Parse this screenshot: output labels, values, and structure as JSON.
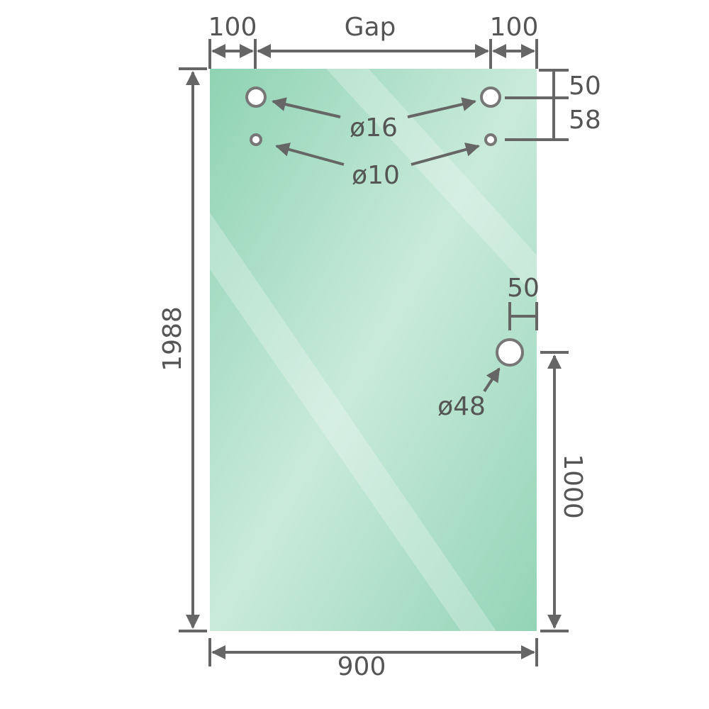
{
  "diagram": {
    "dimensions": {
      "left_offset": "100",
      "gap": "Gap",
      "right_offset": "100",
      "top_to_upper_hole": "50",
      "upper_to_lower_hole": "58",
      "height": "1988",
      "width": "900",
      "knob_edge_offset": "50",
      "knob_height": "1000"
    },
    "holes": {
      "upper": "ø16",
      "lower": "ø10",
      "knob": "ø48"
    },
    "colors": {
      "glass": "#97d6b8",
      "glass_light": "#c8eadb",
      "line": "#666666"
    }
  }
}
